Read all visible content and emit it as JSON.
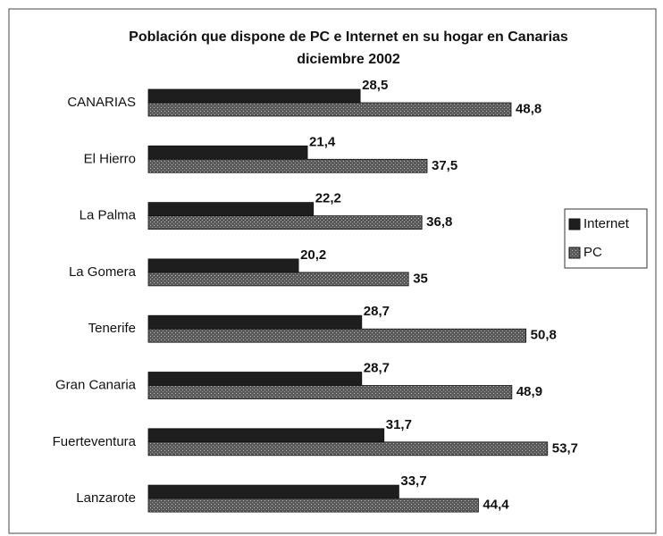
{
  "chart_data": {
    "type": "bar",
    "orientation": "horizontal",
    "title": "Población que dispone de PC e Internet en su hogar en Canarias",
    "subtitle": "diciembre 2002",
    "categories": [
      "CANARIAS",
      "El Hierro",
      "La Palma",
      "La Gomera",
      "Tenerife",
      "Gran Canaria",
      "Fuerteventura",
      "Lanzarote"
    ],
    "series": [
      {
        "name": "Internet",
        "color": "#1e1e1e",
        "values": [
          28.5,
          21.4,
          22.2,
          20.2,
          28.7,
          28.7,
          31.7,
          33.7
        ],
        "value_labels": [
          "28,5",
          "21,4",
          "22,2",
          "20,2",
          "28,7",
          "28,7",
          "31,7",
          "33,7"
        ]
      },
      {
        "name": "PC",
        "color": "#5a5a5a",
        "values": [
          48.8,
          37.5,
          36.8,
          35,
          50.8,
          48.9,
          53.7,
          44.4
        ],
        "value_labels": [
          "48,8",
          "37,5",
          "36,8",
          "35",
          "50,8",
          "48,9",
          "53,7",
          "44,4"
        ]
      }
    ],
    "legend": "right"
  }
}
